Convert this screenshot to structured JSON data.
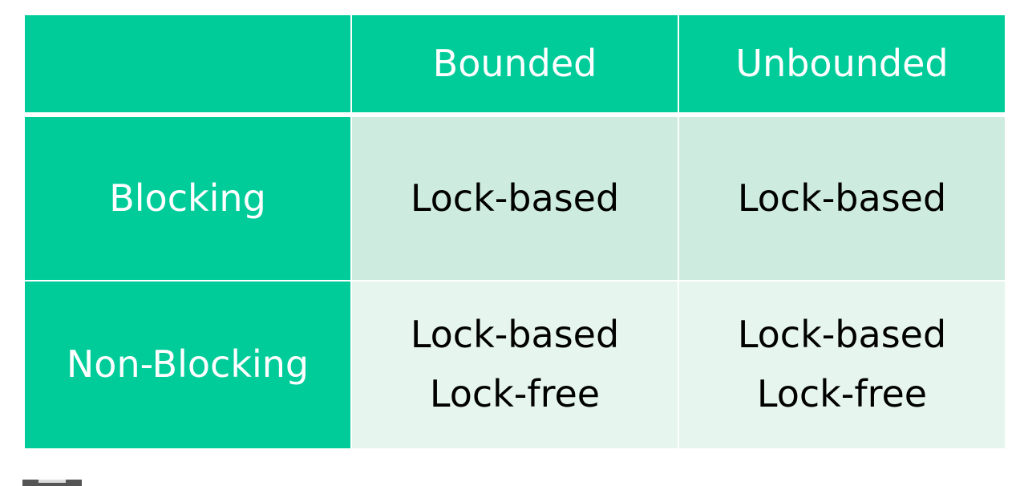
{
  "table": {
    "columns": [
      "",
      "Bounded",
      "Unbounded"
    ],
    "rows": [
      {
        "label": "Blocking",
        "bounded": [
          "Lock-based"
        ],
        "unbounded": [
          "Lock-based"
        ]
      },
      {
        "label": "Non-Blocking",
        "bounded": [
          "Lock-based",
          "Lock-free"
        ],
        "unbounded": [
          "Lock-based",
          "Lock-free"
        ]
      }
    ]
  },
  "colors": {
    "header": "#00cc9a",
    "row1_cell": "#cdebdf",
    "row2_cell": "#e6f5ee"
  }
}
